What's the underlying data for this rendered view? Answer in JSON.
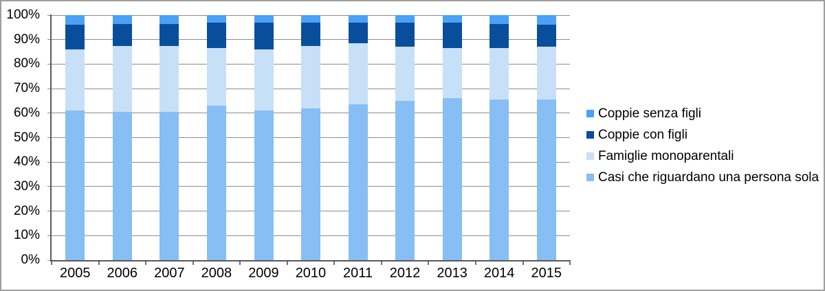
{
  "chart_data": {
    "type": "bar",
    "subtype": "stacked-100-percent-column",
    "title": "",
    "xlabel": "",
    "ylabel": "",
    "categories": [
      "2005",
      "2006",
      "2007",
      "2008",
      "2009",
      "2010",
      "2011",
      "2012",
      "2013",
      "2014",
      "2015"
    ],
    "series": [
      {
        "name": "Casi che riguardano una persona sola",
        "color": "#87BEF3",
        "values": [
          61,
          60.5,
          60.5,
          63,
          61,
          62,
          63.5,
          65,
          66,
          65.5,
          65.5
        ]
      },
      {
        "name": "Famiglie monoparentali",
        "color": "#C8DFF8",
        "values": [
          25,
          27,
          27,
          23.5,
          25,
          25.5,
          25,
          22,
          20.5,
          21,
          21.5
        ]
      },
      {
        "name": "Coppie con figli",
        "color": "#084E9C",
        "values": [
          10,
          9,
          9,
          10.5,
          11,
          9.5,
          8.5,
          10,
          10.5,
          10,
          9
        ]
      },
      {
        "name": "Coppie senza figli",
        "color": "#4BA1F7",
        "values": [
          4,
          3.5,
          3.5,
          3,
          3,
          3,
          3,
          3,
          3,
          3.5,
          4
        ]
      }
    ],
    "y_ticks": [
      "0%",
      "10%",
      "20%",
      "30%",
      "40%",
      "50%",
      "60%",
      "70%",
      "80%",
      "90%",
      "100%"
    ],
    "ylim": [
      0,
      100
    ],
    "grid": true,
    "legend_position": "right",
    "legend_top_to_bottom": [
      "Coppie senza figli",
      "Coppie con figli",
      "Famiglie monoparentali",
      "Casi che riguardano una persona sola"
    ]
  },
  "colors": {
    "axis": "#595959",
    "gridline": "#8C8C8C",
    "outer_border": "#9E9E9E",
    "background": "#FFFFFF",
    "text": "#000000"
  }
}
